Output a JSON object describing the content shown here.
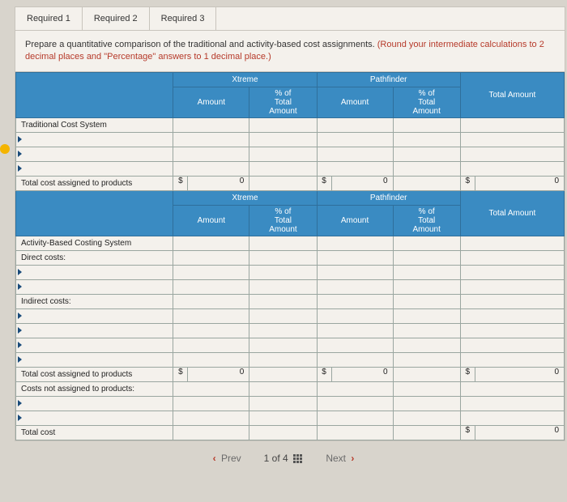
{
  "tabs": [
    "Required 1",
    "Required 2",
    "Required 3"
  ],
  "instruction": {
    "black": "Prepare a quantitative comparison of the traditional and activity-based cost assignments. ",
    "red": "(Round your intermediate calculations to 2 decimal places and \"Percentage\" answers to 1 decimal place.)"
  },
  "headers": {
    "xtreme": "Xtreme",
    "pathfinder": "Pathfinder",
    "amount": "Amount",
    "pct": "% of\nTotal\nAmount",
    "total": "Total Amount"
  },
  "rows": {
    "tcs": "Traditional Cost System",
    "tcap": "Total cost assigned to products",
    "abc": "Activity-Based Costing System",
    "direct": "Direct costs:",
    "indirect": "Indirect costs:",
    "cnap": "Costs not assigned to products:",
    "totalcost": "Total cost"
  },
  "values": {
    "currency": "$",
    "zero": "0"
  },
  "pager": {
    "prev": "Prev",
    "pos": "1 of 4",
    "next": "Next"
  },
  "style": {
    "header_bg": "#3a8bc2",
    "header_fg": "#ffffff",
    "page_bg": "#d8d4cc",
    "card_bg": "#f4f1ec",
    "border": "#9aa6a0",
    "red": "#b63a2a",
    "font_size_body": 10,
    "font_size_instr": 11,
    "font_size_tab": 11,
    "font_size_pager": 12
  }
}
